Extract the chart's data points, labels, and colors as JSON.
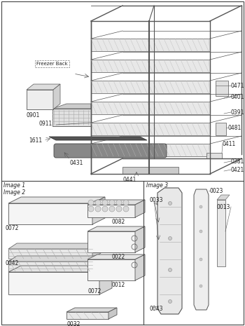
{
  "bg_color": "#ffffff",
  "image1_label": "Image 1",
  "image2_label": "Image 2",
  "image3_label": "Image 3",
  "freezer_back_label": "Freezer Back"
}
